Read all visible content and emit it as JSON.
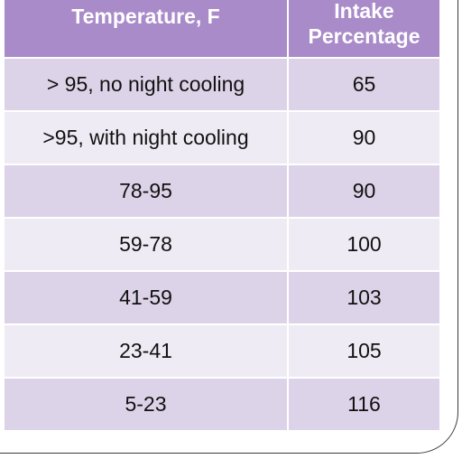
{
  "table": {
    "headers": {
      "temperature": "Temperature, F",
      "intake_line1": "Intake",
      "intake_line2": "Percentage"
    },
    "rows": [
      {
        "temperature": "> 95, no night cooling",
        "intake": "65"
      },
      {
        "temperature": ">95, with night cooling",
        "intake": "90"
      },
      {
        "temperature": "78-95",
        "intake": "90"
      },
      {
        "temperature": "59-78",
        "intake": "100"
      },
      {
        "temperature": "41-59",
        "intake": "103"
      },
      {
        "temperature": "23-41",
        "intake": "105"
      },
      {
        "temperature": "5-23",
        "intake": "116"
      }
    ]
  },
  "colors": {
    "header_bg": "#a98bc9",
    "row_dark": "#ddd3e8",
    "row_light": "#efebf4"
  }
}
